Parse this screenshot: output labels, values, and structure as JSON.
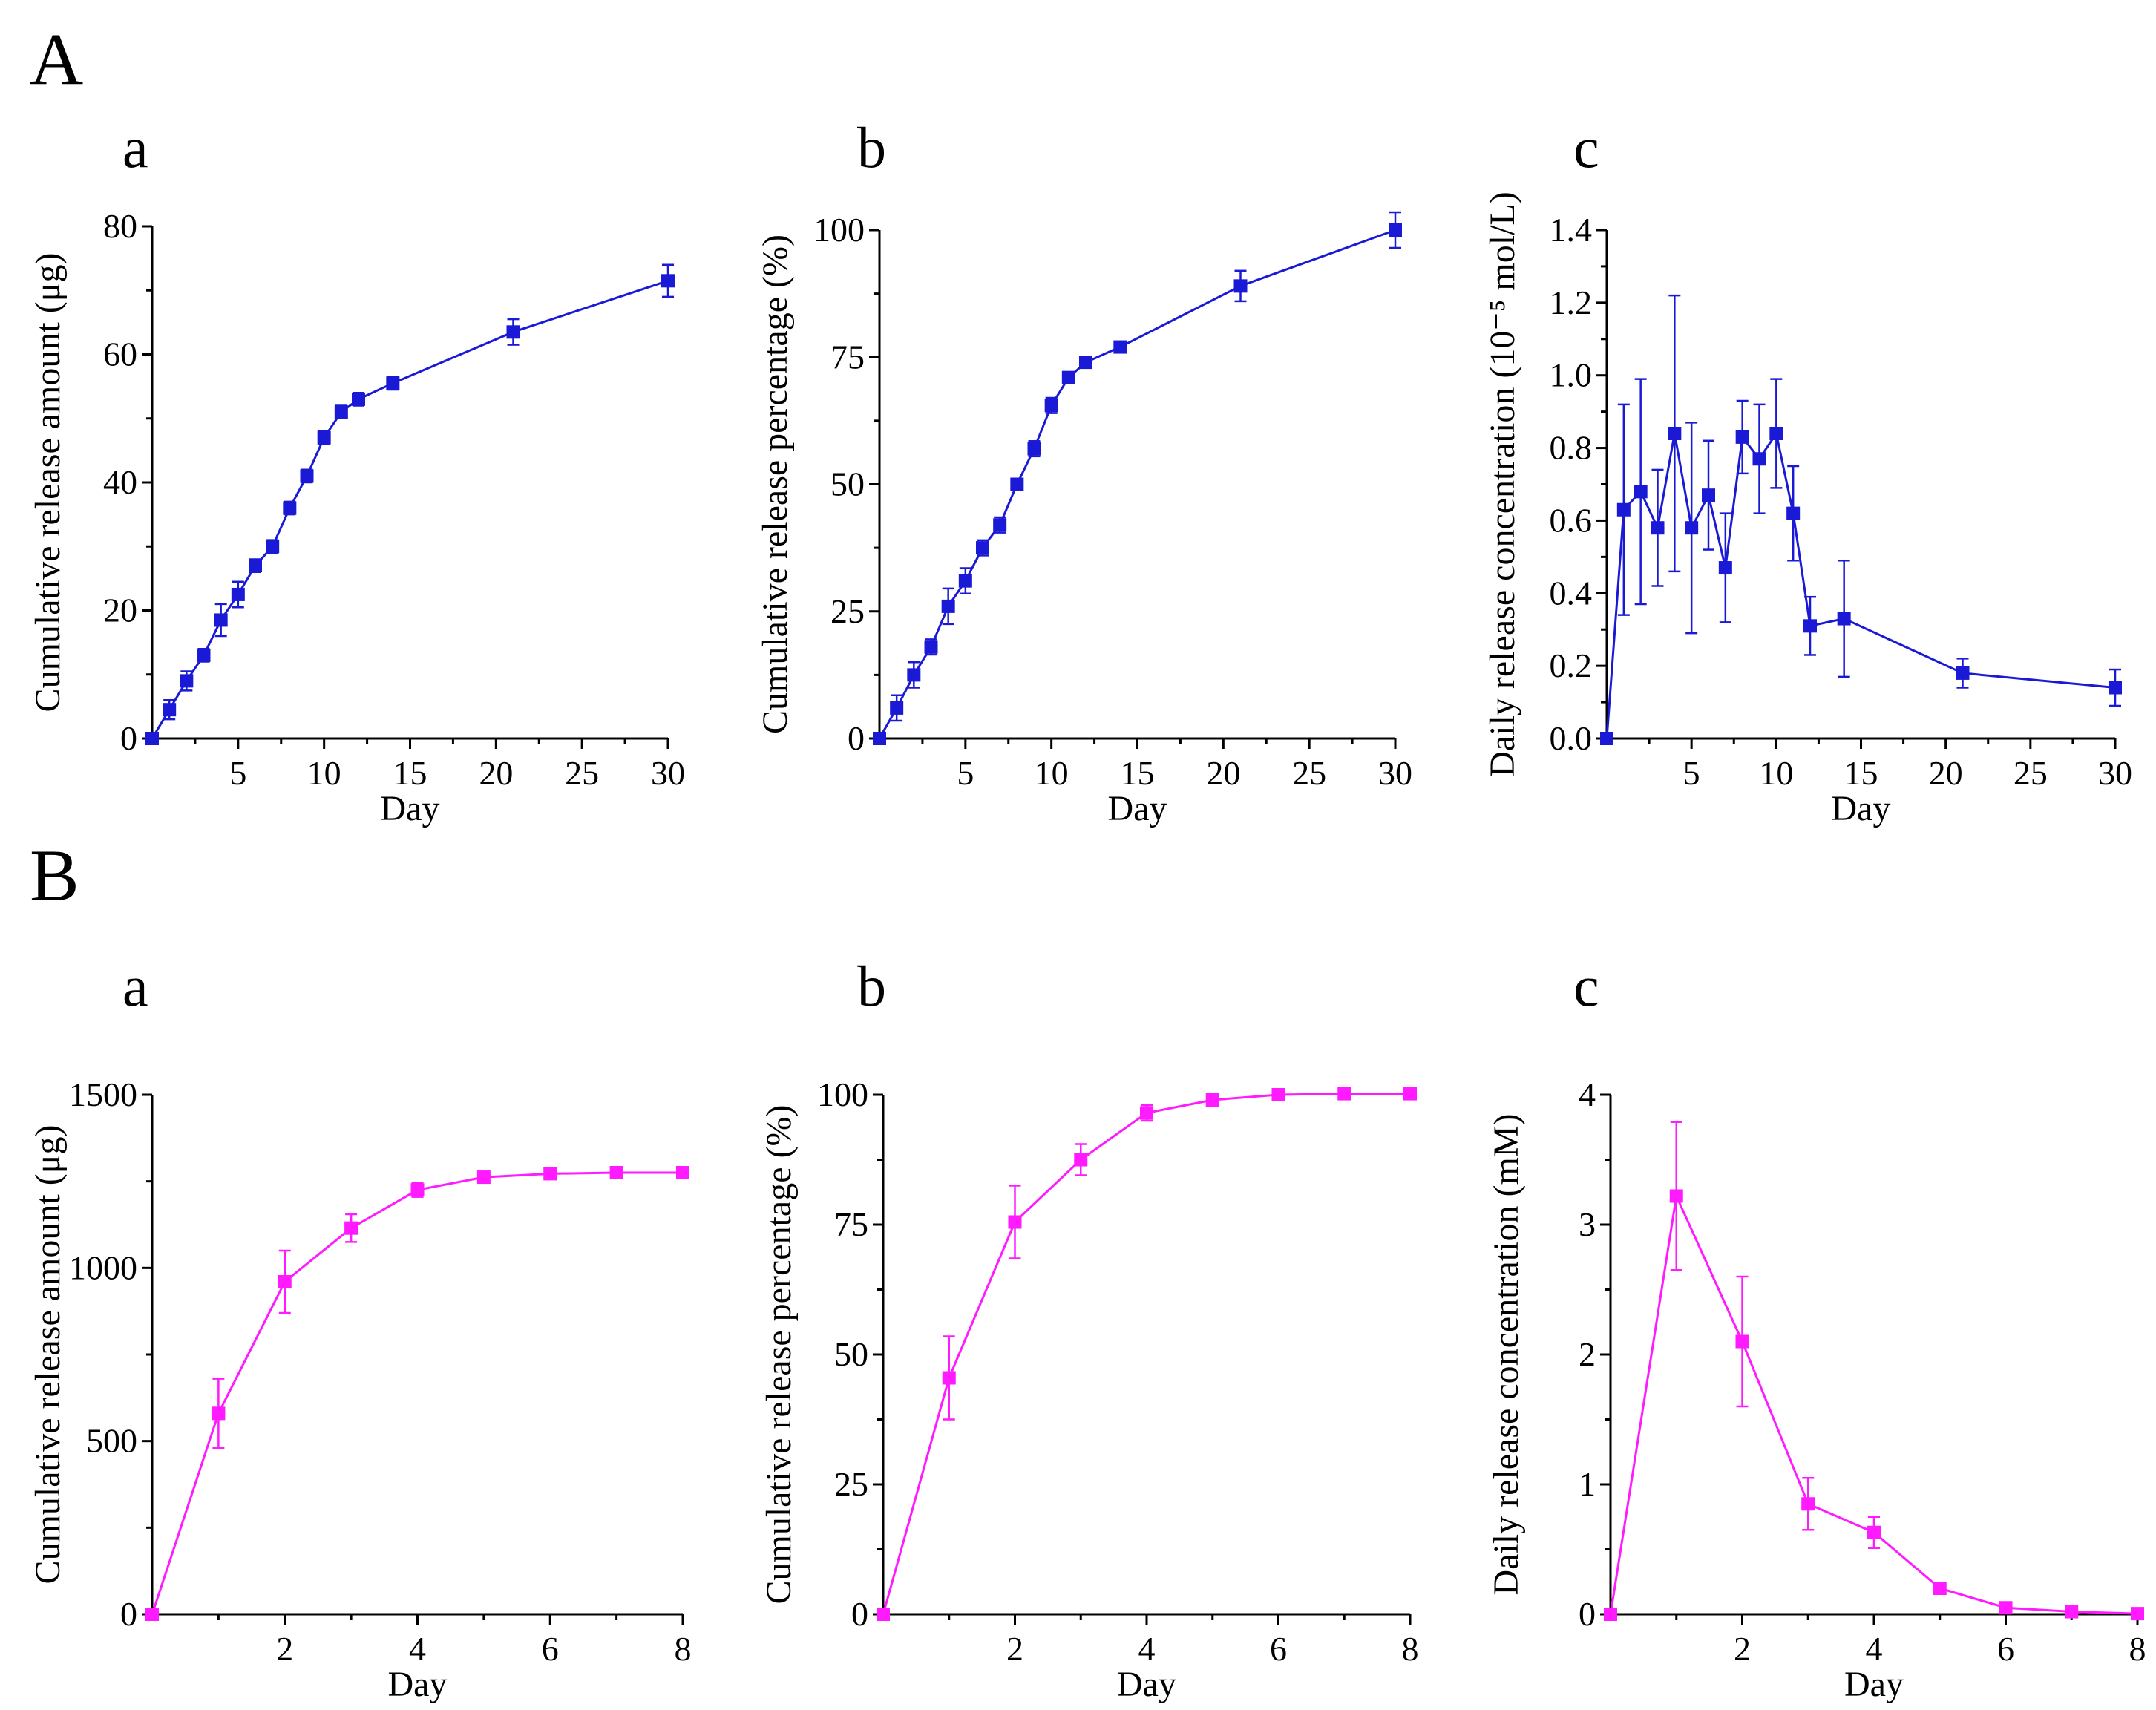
{
  "figure": {
    "panel_A": "A",
    "panel_B": "B",
    "sub_a": "a",
    "sub_b": "b",
    "sub_c": "c",
    "colors": {
      "A": "#1a1ad6",
      "B": "#ff1aff"
    }
  },
  "chart_data": [
    {
      "id": "Aa",
      "type": "line",
      "color": "#1a1ad6",
      "xlabel": "Day",
      "ylabel": "Cumulative release amount (μg)",
      "xlim": [
        0,
        30
      ],
      "ylim": [
        0,
        80
      ],
      "xticks": [
        5,
        10,
        15,
        20,
        25,
        30
      ],
      "yticks": [
        0,
        20,
        40,
        60,
        80
      ],
      "x": [
        0,
        1,
        2,
        3,
        4,
        5,
        6,
        7,
        8,
        9,
        10,
        11,
        12,
        14,
        21,
        30
      ],
      "y": [
        0,
        4.5,
        9,
        13,
        18.5,
        22.5,
        27,
        30,
        36,
        41,
        47,
        51,
        53,
        55.5,
        63.5,
        71.5
      ],
      "err": [
        0.5,
        1.5,
        1.5,
        1,
        2.5,
        2,
        1,
        1,
        1,
        1,
        1,
        1,
        1,
        1,
        2,
        2.5
      ]
    },
    {
      "id": "Ab",
      "type": "line",
      "color": "#1a1ad6",
      "xlabel": "Day",
      "ylabel": "Cumulative release percentage (%)",
      "xlim": [
        0,
        30
      ],
      "ylim": [
        0,
        100
      ],
      "xticks": [
        5,
        10,
        15,
        20,
        25,
        30
      ],
      "yticks": [
        0,
        25,
        50,
        75,
        100
      ],
      "x": [
        0,
        1,
        2,
        3,
        4,
        5,
        6,
        7,
        8,
        9,
        10,
        11,
        12,
        14,
        21,
        30
      ],
      "y": [
        0,
        6,
        12.5,
        18,
        26,
        31,
        37.5,
        42,
        50,
        57,
        65.5,
        71,
        74,
        77,
        89,
        100
      ],
      "err": [
        0.5,
        2.5,
        2.5,
        1.5,
        3.5,
        2.5,
        1.5,
        1.5,
        1,
        1.5,
        1.5,
        1,
        1,
        1,
        3,
        3.5
      ]
    },
    {
      "id": "Ac",
      "type": "line",
      "color": "#1a1ad6",
      "xlabel": "Day",
      "ylabel": "Daily release concentration (10⁻⁵ mol/L)",
      "xlim": [
        0,
        30
      ],
      "ylim": [
        0,
        1.4
      ],
      "xticks": [
        5,
        10,
        15,
        20,
        25,
        30
      ],
      "yticks": [
        0.0,
        0.2,
        0.4,
        0.6,
        0.8,
        1.0,
        1.2,
        1.4
      ],
      "ytick_labels": [
        "0.0",
        "0.2",
        "0.4",
        "0.6",
        "0.8",
        "1.0",
        "1.2",
        "1.4"
      ],
      "x": [
        0,
        1,
        2,
        3,
        4,
        5,
        6,
        7,
        8,
        9,
        10,
        11,
        12,
        14,
        21,
        30
      ],
      "y": [
        0,
        0.63,
        0.68,
        0.58,
        0.84,
        0.58,
        0.67,
        0.47,
        0.83,
        0.77,
        0.84,
        0.62,
        0.31,
        0.33,
        0.18,
        0.14
      ],
      "err": [
        0,
        0.29,
        0.31,
        0.16,
        0.38,
        0.29,
        0.15,
        0.15,
        0.1,
        0.15,
        0.15,
        0.13,
        0.08,
        0.16,
        0.04,
        0.05
      ]
    },
    {
      "id": "Ba",
      "type": "line",
      "color": "#ff1aff",
      "xlabel": "Day",
      "ylabel": "Cumulative release amount (μg)",
      "xlim": [
        0,
        8
      ],
      "ylim": [
        0,
        1500
      ],
      "xticks": [
        2,
        4,
        6,
        8
      ],
      "yticks": [
        0,
        500,
        1000,
        1500
      ],
      "x": [
        0,
        1,
        2,
        3,
        4,
        5,
        6,
        7,
        8
      ],
      "y": [
        0,
        580,
        960,
        1115,
        1225,
        1262,
        1272,
        1275,
        1275
      ],
      "err": [
        0,
        100,
        90,
        40,
        20,
        10,
        5,
        5,
        5
      ]
    },
    {
      "id": "Bb",
      "type": "line",
      "color": "#ff1aff",
      "xlabel": "Day",
      "ylabel": "Cumulative release percentage (%)",
      "xlim": [
        0,
        8
      ],
      "ylim": [
        0,
        100
      ],
      "xticks": [
        2,
        4,
        6,
        8
      ],
      "yticks": [
        0,
        25,
        50,
        75,
        100
      ],
      "x": [
        0,
        1,
        2,
        3,
        4,
        5,
        6,
        7,
        8
      ],
      "y": [
        0,
        45.5,
        75.5,
        87.5,
        96.5,
        99,
        100,
        100.2,
        100.2
      ],
      "err": [
        0,
        8,
        7,
        3,
        1.5,
        1,
        0.5,
        0.3,
        0.3
      ]
    },
    {
      "id": "Bc",
      "type": "line",
      "color": "#ff1aff",
      "xlabel": "Day",
      "ylabel": "Daily release concentration  (mM)",
      "xlim": [
        0,
        8
      ],
      "ylim": [
        0,
        4
      ],
      "xticks": [
        2,
        4,
        6,
        8
      ],
      "yticks": [
        0,
        1,
        2,
        3,
        4
      ],
      "x": [
        0,
        1,
        2,
        3,
        4,
        5,
        6,
        7,
        8
      ],
      "y": [
        0,
        3.22,
        2.1,
        0.85,
        0.63,
        0.2,
        0.05,
        0.02,
        0.005
      ],
      "err": [
        0,
        0.57,
        0.5,
        0.2,
        0.12,
        0.03,
        0.02,
        0.01,
        0.005
      ]
    }
  ]
}
